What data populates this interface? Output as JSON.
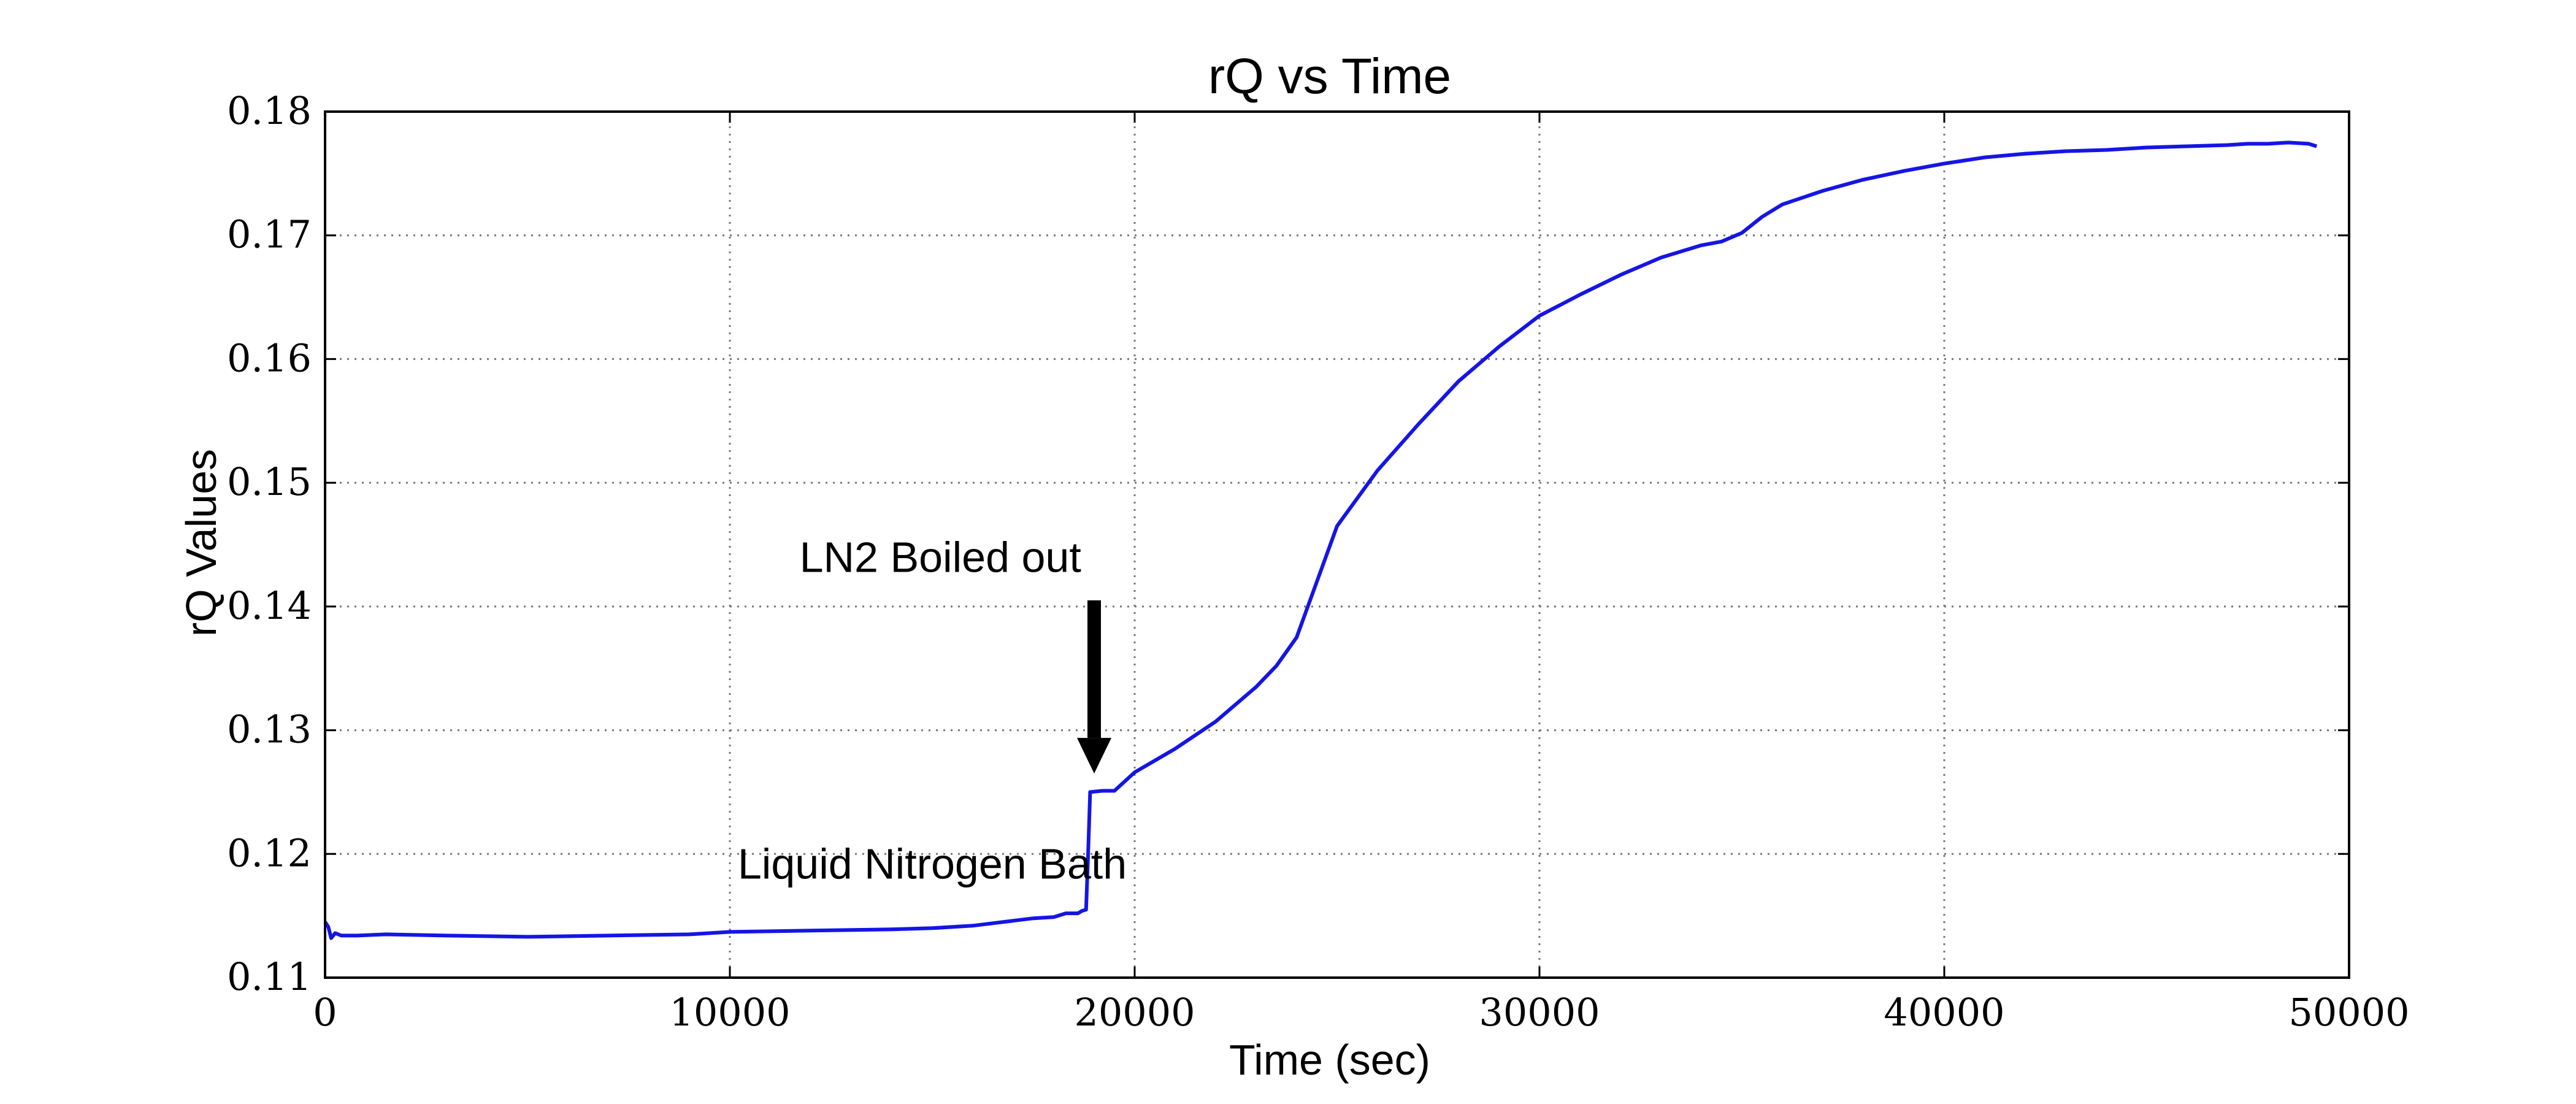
{
  "chart_data": {
    "type": "line",
    "title": "rQ vs Time",
    "xlabel": "Time (sec)",
    "ylabel": "rQ Values",
    "xlim": [
      0,
      50000
    ],
    "ylim": [
      0.11,
      0.18
    ],
    "xticks": [
      0,
      10000,
      20000,
      30000,
      40000,
      50000
    ],
    "xtick_labels": [
      "0",
      "10000",
      "20000",
      "30000",
      "40000",
      "50000"
    ],
    "yticks": [
      0.11,
      0.12,
      0.13,
      0.14,
      0.15,
      0.16,
      0.17,
      0.18
    ],
    "ytick_labels": [
      "0.11",
      "0.12",
      "0.13",
      "0.14",
      "0.15",
      "0.16",
      "0.17",
      "0.18"
    ],
    "grid": true,
    "line_color": "#1515e6",
    "series": [
      {
        "x": [
          0,
          80,
          150,
          250,
          400,
          800,
          1500,
          3000,
          5000,
          7000,
          9000,
          10000,
          12000,
          14000,
          15000,
          16000,
          17000,
          17500,
          18000,
          18300,
          18600,
          18700,
          18800,
          18850,
          18900,
          19200,
          19500,
          20000,
          21000,
          22000,
          23000,
          23500,
          24000,
          24500,
          25000,
          26000,
          27000,
          28000,
          29000,
          30000,
          31000,
          32000,
          33000,
          34000,
          34500,
          35000,
          35500,
          36000,
          37000,
          38000,
          39000,
          40000,
          41000,
          42000,
          43000,
          44000,
          45000,
          46000,
          47000,
          47500,
          48000,
          48500,
          49000,
          49200
        ],
        "y": [
          0.1145,
          0.1141,
          0.1132,
          0.1136,
          0.1134,
          0.1134,
          0.1135,
          0.1134,
          0.1133,
          0.1134,
          0.1135,
          0.1137,
          0.1138,
          0.1139,
          0.114,
          0.1142,
          0.1146,
          0.1148,
          0.1149,
          0.1152,
          0.1152,
          0.1154,
          0.1155,
          0.12,
          0.125,
          0.1251,
          0.1251,
          0.1266,
          0.1285,
          0.1307,
          0.1335,
          0.1352,
          0.1375,
          0.142,
          0.1465,
          0.151,
          0.1547,
          0.1582,
          0.161,
          0.1635,
          0.1652,
          0.1668,
          0.1682,
          0.1692,
          0.1695,
          0.1702,
          0.1715,
          0.1725,
          0.1736,
          0.1745,
          0.1752,
          0.1758,
          0.1763,
          0.1766,
          0.1768,
          0.1769,
          0.1771,
          0.1772,
          0.1773,
          0.1774,
          0.1774,
          0.1775,
          0.1774,
          0.1772
        ]
      }
    ],
    "annotations": [
      {
        "text": "Liquid Nitrogen Bath",
        "x": 15000,
        "y": 0.118
      },
      {
        "text": "LN2 Boiled out",
        "x": 15200,
        "y": 0.1428,
        "arrow_from": [
          19000,
          0.1405
        ],
        "arrow_to": [
          19000,
          0.1265
        ]
      }
    ]
  }
}
